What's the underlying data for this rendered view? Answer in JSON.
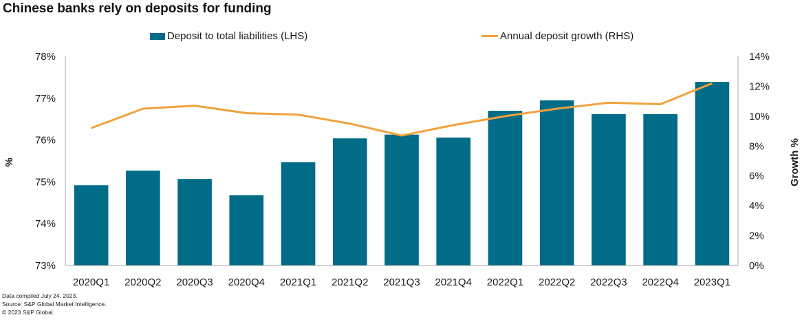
{
  "chart_data": {
    "type": "bar",
    "title": "Chinese banks rely on deposits for funding",
    "categories": [
      "2020Q1",
      "2020Q2",
      "2020Q3",
      "2020Q4",
      "2021Q1",
      "2021Q2",
      "2021Q3",
      "2021Q4",
      "2022Q1",
      "2022Q2",
      "2022Q3",
      "2022Q4",
      "2023Q1"
    ],
    "series": [
      {
        "name": "Deposit to total liabilities (LHS)",
        "type": "bar",
        "axis": "left",
        "color": "#006c87",
        "values": [
          74.92,
          75.27,
          75.07,
          74.68,
          75.47,
          76.04,
          76.13,
          76.06,
          76.7,
          76.95,
          76.62,
          76.62,
          77.39
        ]
      },
      {
        "name": "Annual deposit growth (RHS)",
        "type": "line",
        "axis": "right",
        "color": "#f0a23c",
        "values": [
          9.2,
          10.5,
          10.7,
          10.2,
          10.1,
          9.5,
          8.7,
          9.4,
          10.0,
          10.5,
          10.9,
          10.8,
          12.2
        ]
      }
    ],
    "ylabel": "%",
    "ylabel_right": "Growth %",
    "xlabel": "",
    "ylim": [
      73,
      78
    ],
    "ylim_right": [
      0,
      14
    ],
    "yticks": [
      "73%",
      "74%",
      "75%",
      "76%",
      "77%",
      "78%"
    ],
    "yticks_right": [
      "0%",
      "2%",
      "4%",
      "6%",
      "8%",
      "10%",
      "12%",
      "14%"
    ],
    "grid": false,
    "legend_position": "top"
  },
  "footer": {
    "line1": "Data compiled July 24, 2023.",
    "line2": "Source: S&P Global Market Intelligence.",
    "line3": "© 2023 S&P Global."
  }
}
